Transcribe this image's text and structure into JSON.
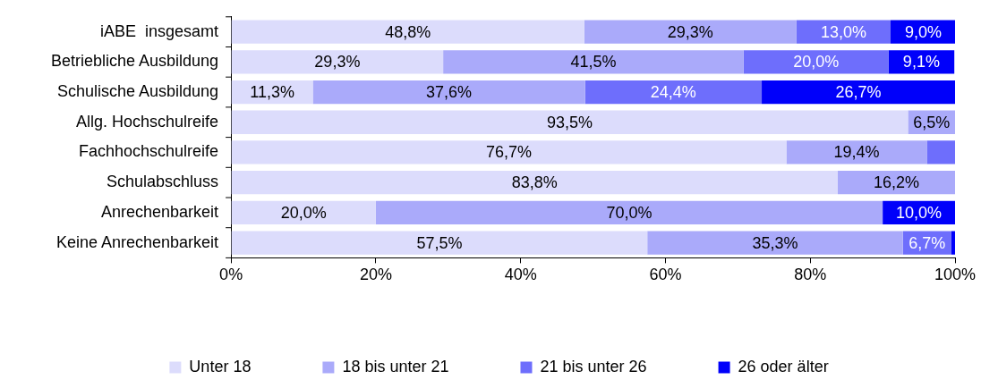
{
  "chart_data": {
    "type": "bar",
    "orientation": "horizontal",
    "stacked": true,
    "legend": "bottom",
    "grid": false,
    "categories": [
      "iABE  insgesamt",
      "Betriebliche Ausbildung",
      "Schulische Ausbildung",
      "Allg. Hochschulreife",
      "Fachhochschulreife",
      "Schulabschluss",
      "Anrechenbarkeit",
      "Keine Anrechenbarkeit"
    ],
    "xlim": [
      0,
      100
    ],
    "xticks": [
      {
        "value": 0,
        "label": "0%"
      },
      {
        "value": 20,
        "label": "20%"
      },
      {
        "value": 40,
        "label": "40%"
      },
      {
        "value": 60,
        "label": "60%"
      },
      {
        "value": 80,
        "label": "80%"
      },
      {
        "value": 100,
        "label": "100%"
      }
    ],
    "series": [
      {
        "name": "Unter 18",
        "color": "#dcdcfc",
        "values": [
          48.8,
          29.3,
          11.3,
          93.5,
          76.7,
          83.8,
          20.0,
          57.5
        ],
        "value_labels": [
          "48,8%",
          "29,3%",
          "11,3%",
          "93,5%",
          "76,7%",
          "83,8%",
          "20,0%",
          "57,5%"
        ]
      },
      {
        "name": "18 bis unter 21",
        "color": "#aaaafa",
        "values": [
          29.3,
          41.5,
          37.6,
          6.5,
          19.4,
          16.2,
          70.0,
          35.3
        ],
        "value_labels": [
          "29,3%",
          "41,5%",
          "37,6%",
          "6,5%",
          "19,4%",
          "16,2%",
          "70,0%",
          "35,3%"
        ]
      },
      {
        "name": "21 bis unter 26",
        "color": "#6e6efc",
        "values": [
          13.0,
          20.0,
          24.4,
          null,
          3.9,
          null,
          null,
          6.7
        ],
        "value_labels": [
          "13,0%",
          "20,0%",
          "24,4%",
          null,
          null,
          null,
          null,
          "6,7%"
        ]
      },
      {
        "name": "26 oder älter",
        "color": "#0000fa",
        "values": [
          9.0,
          9.1,
          26.7,
          null,
          null,
          null,
          10.0,
          0.5
        ],
        "value_labels": [
          "9,0%",
          "9,1%",
          "26,7%",
          null,
          null,
          null,
          "10,0%",
          null
        ]
      }
    ]
  }
}
